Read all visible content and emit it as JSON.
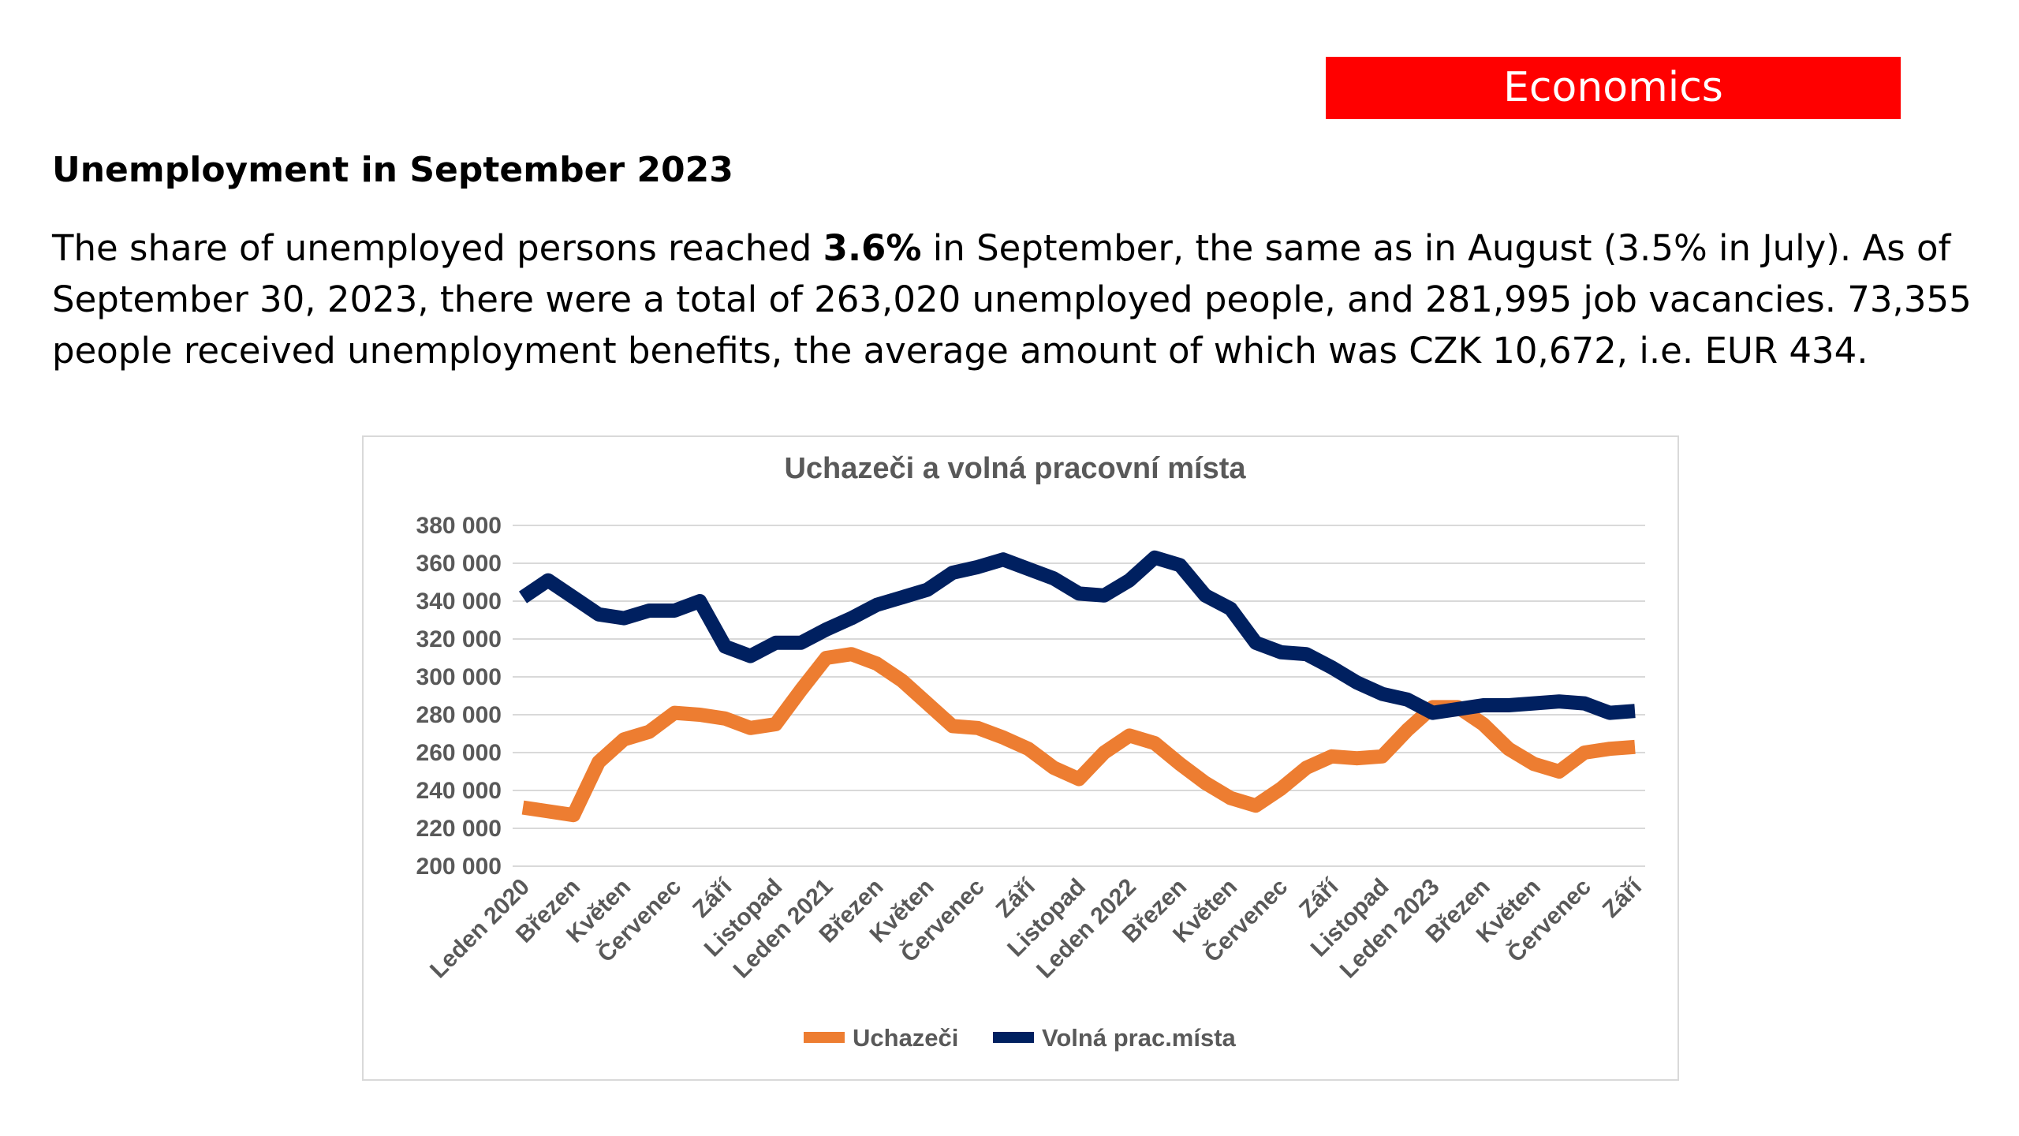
{
  "header": {
    "section_label": "Economics",
    "section_color": "#ff0000"
  },
  "article": {
    "heading": "Unemployment in September 2023",
    "text_before_bold": "The share of unemployed persons reached ",
    "bold_value": "3.6%",
    "text_after_bold": " in September, the same as in August (3.5% in July). As of September 30, 2023, there were a total of 263,020 unemployed people, and 281,995 job vacancies. 73,355 people received unemployment benefits, the average amount of which was CZK 10,672, i.e. EUR 434."
  },
  "chart_data": {
    "type": "line",
    "title": "Uchazeči a volná pracovní místa",
    "xlabel": "",
    "ylabel": "",
    "ylim": [
      200000,
      380000
    ],
    "ytick_step": 20000,
    "ytick_labels": [
      "200 000",
      "220 000",
      "240 000",
      "260 000",
      "280 000",
      "300 000",
      "320 000",
      "340 000",
      "360 000",
      "380 000"
    ],
    "grid": true,
    "legend_position": "bottom",
    "x_tick_labels": [
      {
        "index": 0,
        "label": "Leden 2020"
      },
      {
        "index": 2,
        "label": "Březen"
      },
      {
        "index": 4,
        "label": "Květen"
      },
      {
        "index": 6,
        "label": "Červenec"
      },
      {
        "index": 8,
        "label": "Září"
      },
      {
        "index": 10,
        "label": "Listopad"
      },
      {
        "index": 12,
        "label": "Leden 2021"
      },
      {
        "index": 14,
        "label": "Březen"
      },
      {
        "index": 16,
        "label": "Květen"
      },
      {
        "index": 18,
        "label": "Červenec"
      },
      {
        "index": 20,
        "label": "Září"
      },
      {
        "index": 22,
        "label": "Listopad"
      },
      {
        "index": 24,
        "label": "Leden 2022"
      },
      {
        "index": 26,
        "label": "Březen"
      },
      {
        "index": 28,
        "label": "Květen"
      },
      {
        "index": 30,
        "label": "Červenec"
      },
      {
        "index": 32,
        "label": "Září"
      },
      {
        "index": 34,
        "label": "Listopad"
      },
      {
        "index": 36,
        "label": "Leden 2023"
      },
      {
        "index": 38,
        "label": "Březen"
      },
      {
        "index": 40,
        "label": "Květen"
      },
      {
        "index": 42,
        "label": "Červenec"
      },
      {
        "index": 44,
        "label": "Září"
      }
    ],
    "series": [
      {
        "name": "Uchazeči",
        "color": "#ed7d31",
        "values": [
          231000,
          229000,
          227000,
          255000,
          267000,
          271000,
          281000,
          280000,
          278000,
          273000,
          275000,
          293000,
          310000,
          312000,
          307000,
          298000,
          286000,
          274000,
          273000,
          268000,
          262000,
          252000,
          246000,
          260000,
          269000,
          265000,
          254000,
          244000,
          236000,
          232000,
          241000,
          252000,
          258000,
          257000,
          258000,
          272000,
          284000,
          284000,
          275000,
          262000,
          254000,
          250000,
          260000,
          262000,
          263020
        ]
      },
      {
        "name": "Volná prac.místa",
        "color": "#002060",
        "values": [
          342000,
          351000,
          342000,
          333000,
          331000,
          335000,
          335000,
          340000,
          316000,
          311000,
          318000,
          318000,
          325000,
          331000,
          338000,
          342000,
          346000,
          355000,
          358000,
          362000,
          357000,
          352000,
          344000,
          343000,
          351000,
          363000,
          359000,
          343000,
          336000,
          318000,
          313000,
          312000,
          305000,
          297000,
          291000,
          288000,
          281000,
          283000,
          285000,
          285000,
          286000,
          287000,
          286000,
          281000,
          281995
        ]
      }
    ]
  }
}
